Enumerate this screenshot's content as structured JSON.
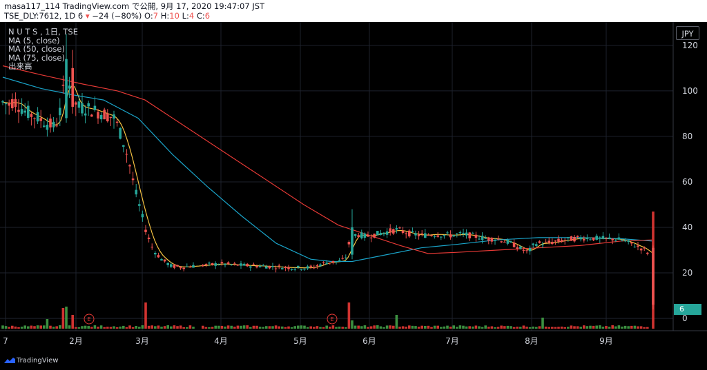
{
  "header": {
    "line1": "masa117_114 TradingView.com で公開, 9月 17, 2020 19:47:07 JST",
    "symbol": "TSE_DLY:7612, 1D 6",
    "change": "−24 (−80%)",
    "o_label": "O:",
    "o_val": "7",
    "h_label": "H:",
    "h_val": "10",
    "l_label": "L:",
    "l_val": "4",
    "c_label": "C:",
    "c_val": "6"
  },
  "legend": {
    "title": "N U T S , 1日, TSE",
    "ma1": "MA (5, close)",
    "ma2": "MA (50, close)",
    "ma3": "MA (75, close)",
    "volume": "出来高"
  },
  "currency_label": "JPY",
  "price_badge": "6",
  "footer_logo": "TradingView",
  "colors": {
    "up": "#26a69a",
    "down": "#ef5350",
    "vol_up": "#43a047",
    "vol_down": "#e53935",
    "ma5": "#f5c242",
    "ma50": "#1aa3c8",
    "ma75": "#e53935",
    "grid": "#1e222d",
    "axis_text": "#d1d4dc"
  },
  "chart_data": {
    "type": "candlestick",
    "symbol": "NUTS (TSE:7612), daily",
    "x_tick_labels": [
      "7",
      "2月",
      "3月",
      "4月",
      "5月",
      "6月",
      "7月",
      "8月",
      "9月"
    ],
    "y_ticks": [
      0,
      20,
      40,
      60,
      80,
      100,
      120
    ],
    "y_range": [
      -3,
      126
    ],
    "grid": true,
    "earnings_markers": [
      "E",
      "E"
    ],
    "earnings_marker_label": "E",
    "period_closes": [
      {
        "period": "1月 初旬",
        "close": 95
      },
      {
        "period": "1月 下旬",
        "close": 84
      },
      {
        "period": "2月 初旬 (peak)",
        "high": 125,
        "close": 95
      },
      {
        "period": "2月 中旬",
        "close": 90
      },
      {
        "period": "2月 下旬",
        "close": 60
      },
      {
        "period": "3月 初旬",
        "close": 35
      },
      {
        "period": "3月 下旬",
        "close": 23
      },
      {
        "period": "4月",
        "close": 24
      },
      {
        "period": "5月 中旬",
        "close": 22
      },
      {
        "period": "5月 下旬",
        "close": 25
      },
      {
        "period": "6月 初旬",
        "high": 48,
        "close": 38
      },
      {
        "period": "7月",
        "close": 37
      },
      {
        "period": "8月 初旬",
        "close": 28
      },
      {
        "period": "8月 中旬",
        "close": 34
      },
      {
        "period": "9月",
        "close": 35
      },
      {
        "period": "9月 17日",
        "open": 7,
        "high": 10,
        "low": 4,
        "close": 6
      }
    ],
    "volume_spikes": [
      "1月 下旬",
      "2月 初旬",
      "3月 初旬",
      "5月 下旬",
      "6月 中旬",
      "8月 初旬",
      "9月 17日"
    ],
    "series": [
      {
        "name": "MA (5, close)"
      },
      {
        "name": "MA (50, close)"
      },
      {
        "name": "MA (75, close)"
      },
      {
        "name": "出来高"
      }
    ]
  }
}
